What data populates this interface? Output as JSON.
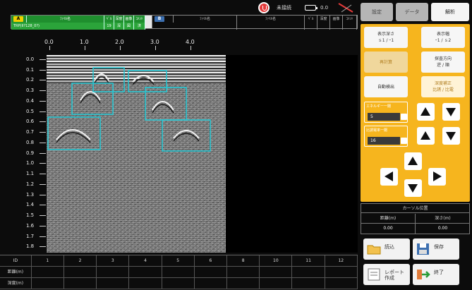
{
  "status_bar": {
    "record_label": "未接続",
    "battery_label": "0.0"
  },
  "info_a": {
    "badge": "A",
    "head": [
      "ﾌｧｲﾙ名",
      "ﾍﾞﾙ",
      "深度",
      "画像",
      "ｺﾒﾝﾄ"
    ],
    "row2": [
      "TRP(II?128_0?)",
      "19",
      "深",
      "図",
      "済"
    ]
  },
  "info_b": {
    "badge": "B",
    "head": [
      "",
      "ﾌｧｲﾙ名",
      "ﾌｧｲﾙ名",
      "ﾍﾞﾙ",
      "深度",
      "画像",
      "ｺﾒﾝﾄ"
    ],
    "row2": [
      "",
      "",
      "",
      "",
      "",
      "",
      ""
    ]
  },
  "x_axis": {
    "labels": [
      "0.0",
      "1.0",
      "2.0",
      "3.0",
      "4.0"
    ]
  },
  "y_axis": {
    "labels": [
      "0.0",
      "0.1",
      "0.2",
      "0.3",
      "0.4",
      "0.5",
      "0.6",
      "0.7",
      "0.8",
      "0.9",
      "1.0",
      "1.1",
      "1.2",
      "1.3",
      "1.4",
      "1.5",
      "1.6",
      "1.7",
      "1.8"
    ]
  },
  "id_table": {
    "row_headers": [
      "ID",
      "距離(m)",
      "深度(m)"
    ],
    "ids": [
      "1",
      "2",
      "3",
      "4",
      "5",
      "6",
      "8",
      "10",
      "11",
      "12"
    ]
  },
  "tabs": [
    "設定",
    "データ",
    "解析"
  ],
  "controls": {
    "display_depth": [
      "表示深さ",
      "ｓ1 / ｰ1"
    ],
    "display_width": [
      "表示幅",
      "ｰ1 / ｓ2"
    ],
    "recalc": [
      "再計算"
    ],
    "scan_dir": [
      "探査方向",
      "逆 / 順"
    ],
    "auto_detect": [
      "自動検出"
    ],
    "depth_corr": [
      "深度補正",
      "比誘 / 比電"
    ],
    "energy": {
      "title": "エネルギー一閾",
      "value": "5"
    },
    "dielectric": {
      "title": "比誘電率一閾",
      "value": "16"
    }
  },
  "position": {
    "title": "カーソル位置",
    "headers": [
      "距離(m)",
      "深さ(m)"
    ],
    "values": [
      "0.00",
      "0.00"
    ]
  },
  "buttons": {
    "load": "読込",
    "save": "保存",
    "report": [
      "レポート",
      "作成"
    ],
    "exit": "終了"
  }
}
